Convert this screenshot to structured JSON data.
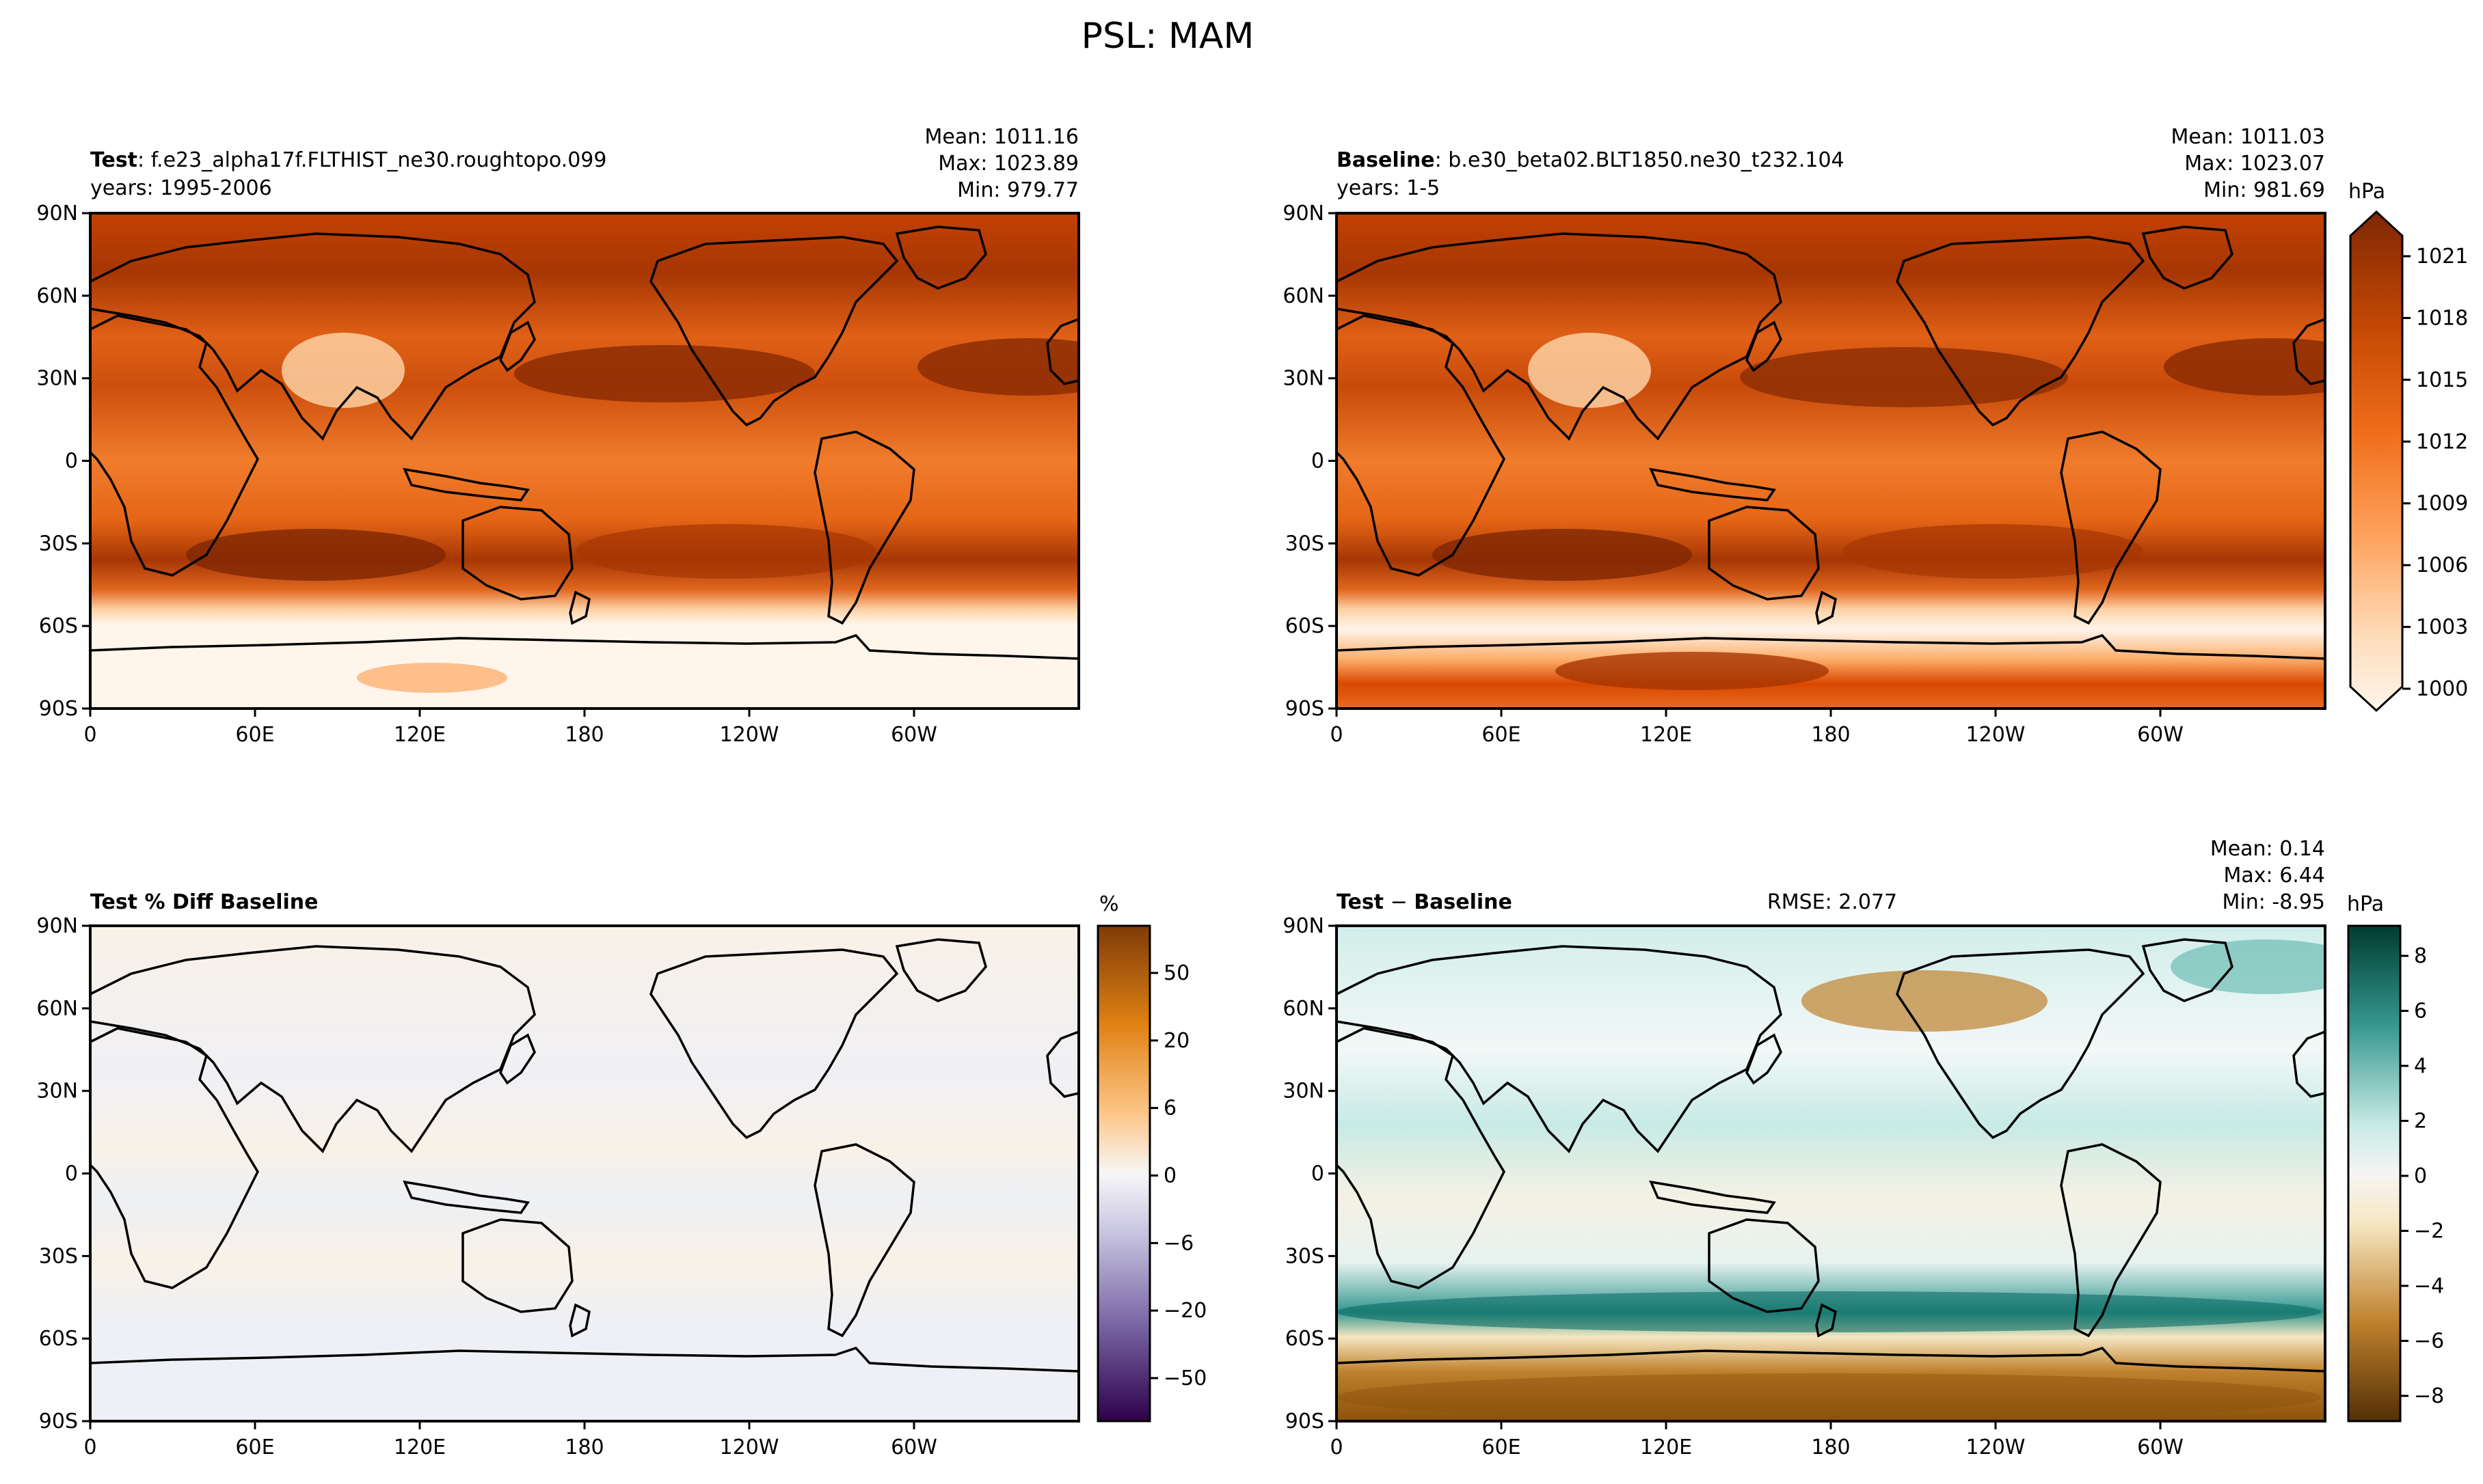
{
  "figure": {
    "title": "PSL: MAM"
  },
  "map_axes": {
    "xticks": [
      "0",
      "60E",
      "120E",
      "180",
      "120W",
      "60W"
    ],
    "yticks": [
      "90N",
      "60N",
      "30N",
      "0",
      "30S",
      "60S",
      "90S"
    ]
  },
  "panels": {
    "test": {
      "label_bold": "Test",
      "label_rest": ": f.e23_alpha17f.FLTHIST_ne30.roughtopo.099",
      "years": "years: 1995-2006",
      "mean": "Mean: 1011.16",
      "max": "Max: 1023.89",
      "min": "Min: 979.77"
    },
    "baseline": {
      "label_bold": "Baseline",
      "label_rest": ": b.e30_beta02.BLT1850.ne30_t232.104",
      "years": "years: 1-5",
      "mean": "Mean: 1011.03",
      "max": "Max: 1023.07",
      "min": "Min: 981.69"
    },
    "pct_diff": {
      "label": "Test % Diff Baseline"
    },
    "diff": {
      "label_bold": "Test",
      "label_sep": " − ",
      "label_bold2": "Baseline",
      "rmse": "RMSE: 2.077",
      "mean": "Mean:  0.14",
      "max": "Max:  6.44",
      "min": "Min: -8.95"
    }
  },
  "colorbars": {
    "psl": {
      "unit": "hPa",
      "ticks": [
        "1021",
        "1018",
        "1015",
        "1012",
        "1009",
        "1006",
        "1003",
        "1000"
      ]
    },
    "pct": {
      "unit": "%",
      "ticks": [
        "50",
        "20",
        "6",
        "0",
        "−6",
        "−20",
        "−50"
      ]
    },
    "diff": {
      "unit": "hPa",
      "ticks": [
        "8",
        "6",
        "4",
        "2",
        "0",
        "−2",
        "−4",
        "−6",
        "−8"
      ]
    }
  },
  "colors": {
    "orange_dark": "#7f2704",
    "orange_mid": "#e8621a",
    "orange_light": "#fdd2a5",
    "orange_pale": "#fff5eb",
    "puor_orange": "#b35806",
    "puor_purple": "#2d004b",
    "brbg_teal": "#003c30",
    "brbg_brown": "#543005",
    "coast": "#000000"
  },
  "chart_data": [
    {
      "type": "heatmap",
      "title": "Test: f.e23_alpha17f.FLTHIST_ne30.roughtopo.099",
      "variable": "PSL",
      "season": "MAM",
      "units": "hPa",
      "stats": {
        "mean": 1011.16,
        "max": 1023.89,
        "min": 979.77
      },
      "x_ticks": [
        "0",
        "60E",
        "120E",
        "180",
        "120W",
        "60W"
      ],
      "y_ticks": [
        "90N",
        "60N",
        "30N",
        "0",
        "30S",
        "60S",
        "90S"
      ],
      "xlim": [
        0,
        360
      ],
      "ylim": [
        -90,
        90
      ],
      "color_levels": [
        1000,
        1003,
        1006,
        1009,
        1012,
        1015,
        1018,
        1021
      ]
    },
    {
      "type": "heatmap",
      "title": "Baseline: b.e30_beta02.BLT1850.ne30_t232.104",
      "variable": "PSL",
      "season": "MAM",
      "units": "hPa",
      "stats": {
        "mean": 1011.03,
        "max": 1023.07,
        "min": 981.69
      },
      "xlim": [
        0,
        360
      ],
      "ylim": [
        -90,
        90
      ],
      "color_levels": [
        1000,
        1003,
        1006,
        1009,
        1012,
        1015,
        1018,
        1021
      ]
    },
    {
      "type": "heatmap",
      "title": "Test % Diff Baseline",
      "units": "%",
      "xlim": [
        0,
        360
      ],
      "ylim": [
        -90,
        90
      ],
      "color_levels": [
        -50,
        -20,
        -6,
        0,
        6,
        20,
        50
      ]
    },
    {
      "type": "heatmap",
      "title": "Test − Baseline",
      "units": "hPa",
      "rmse": 2.077,
      "stats": {
        "mean": 0.14,
        "max": 6.44,
        "min": -8.95
      },
      "xlim": [
        0,
        360
      ],
      "ylim": [
        -90,
        90
      ],
      "color_levels": [
        -8,
        -6,
        -4,
        -2,
        0,
        2,
        4,
        6,
        8
      ]
    }
  ]
}
